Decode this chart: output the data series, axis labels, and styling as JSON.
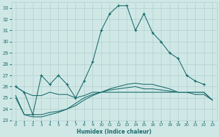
{
  "xlabel": "Humidex (Indice chaleur)",
  "xlim": [
    -0.5,
    23.5
  ],
  "ylim": [
    23,
    33.5
  ],
  "yticks": [
    23,
    24,
    25,
    26,
    27,
    28,
    29,
    30,
    31,
    32,
    33
  ],
  "xticks": [
    0,
    1,
    2,
    3,
    4,
    5,
    6,
    7,
    8,
    9,
    10,
    11,
    12,
    13,
    14,
    15,
    16,
    17,
    18,
    19,
    20,
    21,
    22,
    23
  ],
  "bg_color": "#cfe8e6",
  "grid_color": "#b0cece",
  "line_color": "#1a6b6b",
  "line1_y": [
    26.0,
    25.5,
    23.5,
    27.0,
    26.2,
    27.0,
    26.2,
    25.0,
    26.5,
    28.2,
    31.0,
    32.5,
    33.2,
    33.2,
    31.0,
    32.5,
    30.8,
    30.0,
    29.0,
    28.5,
    27.0,
    26.5,
    26.2,
    null
  ],
  "line2_y": [
    26.0,
    25.5,
    25.2,
    25.2,
    25.5,
    25.3,
    25.3,
    25.0,
    25.2,
    25.5,
    25.5,
    25.5,
    25.5,
    25.5,
    25.5,
    25.5,
    25.5,
    25.5,
    25.5,
    25.5,
    25.5,
    25.5,
    25.5,
    24.8
  ],
  "line3_y": [
    25.2,
    23.5,
    23.5,
    23.5,
    23.7,
    23.8,
    24.0,
    24.3,
    24.8,
    25.2,
    25.5,
    25.7,
    25.8,
    25.9,
    26.0,
    25.8,
    25.8,
    25.7,
    25.6,
    25.5,
    25.5,
    25.5,
    25.5,
    24.8
  ],
  "line4_y": [
    25.0,
    23.5,
    23.3,
    23.3,
    23.5,
    23.7,
    24.0,
    24.5,
    25.0,
    25.3,
    25.5,
    25.8,
    26.0,
    26.2,
    26.3,
    26.2,
    26.2,
    26.0,
    25.8,
    25.5,
    25.5,
    25.3,
    25.3,
    24.8
  ]
}
